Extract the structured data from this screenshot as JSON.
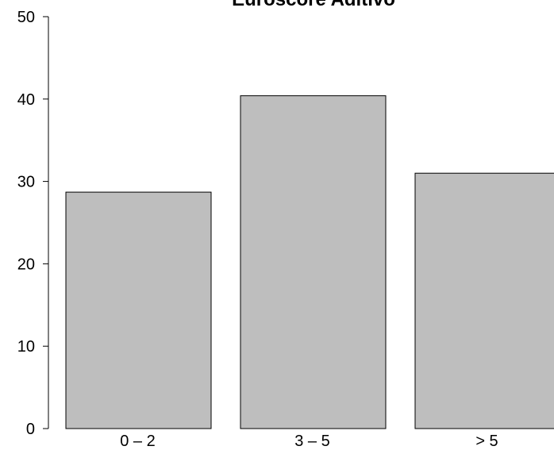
{
  "chart_data": {
    "type": "bar",
    "title": "Euroscore Aditivo",
    "xlabel": "",
    "ylabel": "",
    "categories": [
      "0 – 2",
      "3 – 5",
      "> 5"
    ],
    "values": [
      28.7,
      40.4,
      31.0
    ],
    "ylim": [
      0,
      50
    ],
    "yticks": [
      0,
      10,
      20,
      30,
      40,
      50
    ],
    "yticks_labels": [
      "0",
      "10",
      "20",
      "30",
      "40",
      "50"
    ],
    "grid": false,
    "legend": "none",
    "colors": {
      "bar_fill": "#bebebe",
      "bar_stroke": "#000000",
      "axis": "#000000"
    }
  }
}
